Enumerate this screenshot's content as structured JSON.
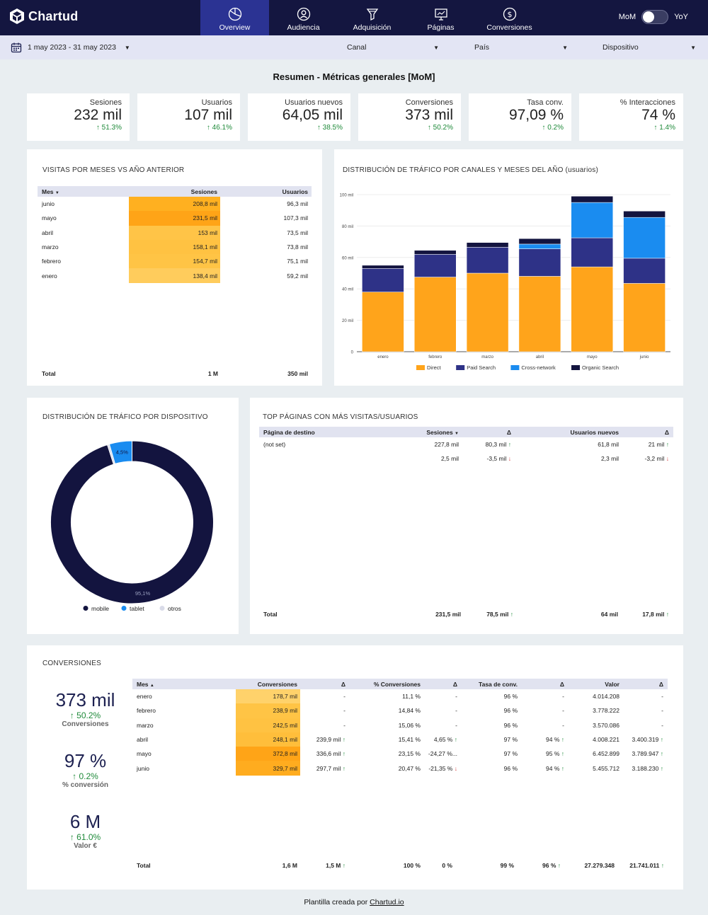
{
  "app": {
    "name": "Chartud"
  },
  "nav": {
    "tabs": [
      {
        "label": "Overview",
        "active": true
      },
      {
        "label": "Audiencia",
        "active": false
      },
      {
        "label": "Adquisición",
        "active": false
      },
      {
        "label": "Páginas",
        "active": false
      },
      {
        "label": "Conversiones",
        "active": false
      }
    ],
    "toggle_left": "MoM",
    "toggle_right": "YoY"
  },
  "filters": {
    "date_range": "1 may 2023 - 31 may 2023",
    "canal": "Canal",
    "pais": "País",
    "dispositivo": "Dispositivo"
  },
  "heading": "Resumen - Métricas generales [MoM]",
  "kpis": [
    {
      "label": "Sesiones",
      "value": "232 mil",
      "delta": "51.3%"
    },
    {
      "label": "Usuarios",
      "value": "107 mil",
      "delta": "46.1%"
    },
    {
      "label": "Usuarios nuevos",
      "value": "64,05 mil",
      "delta": "38.5%"
    },
    {
      "label": "Conversiones",
      "value": "373 mil",
      "delta": "50.2%"
    },
    {
      "label": "Tasa conv.",
      "value": "97,09 %",
      "delta": "0.2%"
    },
    {
      "label": "% Interacciones",
      "value": "74 %",
      "delta": "1.4%"
    }
  ],
  "visitas": {
    "title": "VISITAS POR MESES VS AÑO ANTERIOR",
    "headers": [
      "Mes",
      "Sesiones",
      "Usuarios"
    ],
    "rows": [
      {
        "mes": "junio",
        "sesiones": "208,8 mil",
        "usuarios": "96,3 mil",
        "heat": "#ffb020"
      },
      {
        "mes": "mayo",
        "sesiones": "231,5 mil",
        "usuarios": "107,3 mil",
        "heat": "#ffa417"
      },
      {
        "mes": "abril",
        "sesiones": "153 mil",
        "usuarios": "73,5 mil",
        "heat": "#ffc447"
      },
      {
        "mes": "marzo",
        "sesiones": "158,1 mil",
        "usuarios": "73,8 mil",
        "heat": "#ffc242"
      },
      {
        "mes": "febrero",
        "sesiones": "154,7 mil",
        "usuarios": "75,1 mil",
        "heat": "#ffc445"
      },
      {
        "mes": "enero",
        "sesiones": "138,4 mil",
        "usuarios": "59,2 mil",
        "heat": "#ffcc5c"
      }
    ],
    "total_label": "Total",
    "total_sesiones": "1 M",
    "total_usuarios": "350 mil"
  },
  "chart_data": [
    {
      "type": "bar",
      "stacked": true,
      "title": "DISTRIBUCIÓN DE TRÁFICO POR CANALES Y MESES DEL AÑO (usuarios)",
      "categories": [
        "enero",
        "febrero",
        "marzo",
        "abril",
        "mayo",
        "junio"
      ],
      "ylim": [
        0,
        100
      ],
      "yticks": [
        "0",
        "20 mil",
        "40 mil",
        "60 mil",
        "80 mil",
        "100 mil"
      ],
      "grid": true,
      "legend_position": "bottom",
      "series": [
        {
          "name": "Direct",
          "color": "#ffa41b",
          "values": [
            38,
            47.5,
            50,
            48,
            54,
            43.5
          ]
        },
        {
          "name": "Paid Search",
          "color": "#2e3287",
          "values": [
            15,
            14.5,
            16.5,
            17.5,
            18.5,
            16
          ]
        },
        {
          "name": "Cross-network",
          "color": "#1a8cf0",
          "values": [
            0,
            0,
            0,
            3,
            22.5,
            26
          ]
        },
        {
          "name": "Organic Search",
          "color": "#13143f",
          "values": [
            2,
            2.5,
            3,
            3.5,
            4,
            4
          ]
        }
      ]
    },
    {
      "type": "pie",
      "donut": true,
      "title": "DISTRIBUCIÓN DE TRÁFICO POR DISPOSITIVO",
      "legend_position": "bottom",
      "series": [
        {
          "name": "mobile",
          "color": "#13143f",
          "value": 95.1,
          "label": "95,1%"
        },
        {
          "name": "tablet",
          "color": "#1a8cf0",
          "value": 4.5,
          "label": "4,5%"
        },
        {
          "name": "otros",
          "color": "#d9dbe8",
          "value": 0.4,
          "label": ""
        }
      ]
    }
  ],
  "top_paginas": {
    "title": "TOP PÁGINAS CON MÁS VISITAS/USUARIOS",
    "headers": [
      "Página de destino",
      "Sesiones",
      "Δ",
      "Usuarios nuevos",
      "Δ"
    ],
    "rows": [
      {
        "pagina": "(not set)",
        "sesiones": "227,8 mil",
        "d1": "80,3 mil",
        "d1_dir": "up",
        "usuarios": "61,8 mil",
        "d2": "21 mil",
        "d2_dir": "up"
      },
      {
        "pagina": "",
        "sesiones": "2,5 mil",
        "d1": "-3,5 mil",
        "d1_dir": "down",
        "usuarios": "2,3 mil",
        "d2": "-3,2 mil",
        "d2_dir": "down"
      }
    ],
    "total_label": "Total",
    "total_sesiones": "231,5 mil",
    "total_d1": "78,5 mil",
    "total_usuarios": "64 mil",
    "total_d2": "17,8 mil"
  },
  "conversiones": {
    "title": "CONVERSIONES",
    "side": [
      {
        "value": "373 mil",
        "delta": "50.2%",
        "label": "Conversiones"
      },
      {
        "value": "97 %",
        "delta": "0.2%",
        "label": "% conversión"
      },
      {
        "value": "6 M",
        "delta": "61.0%",
        "label": "Valor €"
      }
    ],
    "headers": [
      "Mes",
      "Conversiones",
      "Δ",
      "% Conversiones",
      "Δ",
      "Tasa de conv.",
      "Δ",
      "Valor",
      "Δ"
    ],
    "rows": [
      {
        "mes": "enero",
        "conv": "178,7 mil",
        "heat": "#ffd26b",
        "d1": "-",
        "d1_dir": "",
        "pct": "11,1 %",
        "d2": "-",
        "d2_dir": "",
        "tasa": "96 %",
        "d3": "-",
        "d3_dir": "",
        "valor": "4.014.208",
        "d4": "-",
        "d4_dir": ""
      },
      {
        "mes": "febrero",
        "conv": "238,9 mil",
        "heat": "#ffc445",
        "d1": "-",
        "d1_dir": "",
        "pct": "14,84 %",
        "d2": "-",
        "d2_dir": "",
        "tasa": "96 %",
        "d3": "-",
        "d3_dir": "",
        "valor": "3.778.222",
        "d4": "-",
        "d4_dir": ""
      },
      {
        "mes": "marzo",
        "conv": "242,5 mil",
        "heat": "#ffc242",
        "d1": "-",
        "d1_dir": "",
        "pct": "15,06 %",
        "d2": "-",
        "d2_dir": "",
        "tasa": "96 %",
        "d3": "-",
        "d3_dir": "",
        "valor": "3.570.086",
        "d4": "-",
        "d4_dir": ""
      },
      {
        "mes": "abril",
        "conv": "248,1 mil",
        "heat": "#ffbe3b",
        "d1": "239,9 mil",
        "d1_dir": "up",
        "pct": "15,41 %",
        "d2": "4,65 %",
        "d2_dir": "up",
        "tasa": "97 %",
        "d3": "94 %",
        "d3_dir": "up",
        "valor": "4.008.221",
        "d4": "3.400.319",
        "d4_dir": "up"
      },
      {
        "mes": "mayo",
        "conv": "372,8 mil",
        "heat": "#ffa417",
        "d1": "336,6 mil",
        "d1_dir": "up",
        "pct": "23,15 %",
        "d2": "-24,27 %...",
        "d2_dir": "",
        "tasa": "97 %",
        "d3": "95 %",
        "d3_dir": "up",
        "valor": "6.452.899",
        "d4": "3.789.947",
        "d4_dir": "up"
      },
      {
        "mes": "junio",
        "conv": "329,7 mil",
        "heat": "#ffac1f",
        "d1": "297,7 mil",
        "d1_dir": "up",
        "pct": "20,47 %",
        "d2": "-21,35 %",
        "d2_dir": "down",
        "tasa": "96 %",
        "d3": "94 %",
        "d3_dir": "up",
        "valor": "5.455.712",
        "d4": "3.188.230",
        "d4_dir": "up"
      }
    ],
    "total": {
      "label": "Total",
      "conv": "1,6 M",
      "d1": "1,5 M",
      "pct": "100 %",
      "d2": "0 %",
      "tasa": "99 %",
      "d3": "96 %",
      "valor": "27.279.348",
      "d4": "21.741.011"
    }
  },
  "footer": {
    "text": "Plantilla creada por",
    "link": "Chartud.io"
  }
}
